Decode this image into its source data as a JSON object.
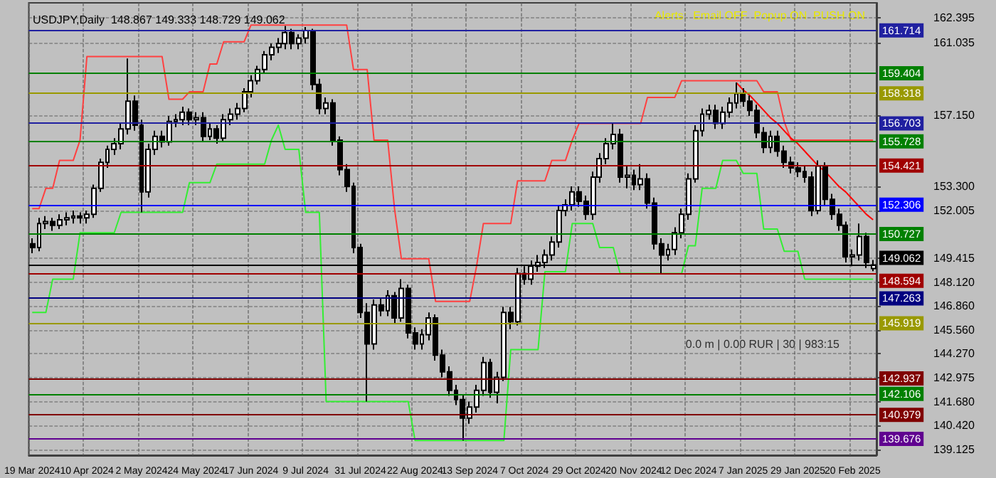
{
  "chart_data": {
    "type": "candlestick",
    "title": "USDJPY,Daily  148.867 149.333 148.729 149.062",
    "color": "#000000",
    "annotations": [
      "Alerts:  Email OFF  Popup ON  PUSH ON",
      "0.0 m | 0.00 RUR | 30 | 983:15"
    ],
    "categories": [
      "19 Mar 2024",
      null,
      null,
      null,
      null,
      null,
      null,
      null,
      "10 Apr 2024",
      null,
      null,
      null,
      null,
      null,
      null,
      null,
      "2 May 2024",
      null,
      null,
      null,
      null,
      null,
      null,
      null,
      "24 May 2024",
      null,
      null,
      null,
      null,
      null,
      null,
      null,
      "17 Jun 2024",
      null,
      null,
      null,
      null,
      null,
      null,
      null,
      "9 Jul 2024",
      null,
      null,
      null,
      null,
      null,
      null,
      null,
      "31 Jul 2024",
      null,
      null,
      null,
      null,
      null,
      null,
      null,
      "22 Aug 2024",
      null,
      null,
      null,
      null,
      null,
      null,
      null,
      "13 Sep 2024",
      null,
      null,
      null,
      null,
      null,
      null,
      null,
      "7 Oct 2024",
      null,
      null,
      null,
      null,
      null,
      null,
      null,
      "29 Oct 2024",
      null,
      null,
      null,
      null,
      null,
      null,
      null,
      "20 Nov 2024",
      null,
      null,
      null,
      null,
      null,
      null,
      null,
      "12 Dec 2024",
      null,
      null,
      null,
      null,
      null,
      null,
      null,
      "7 Jan 2025",
      null,
      null,
      null,
      null,
      null,
      null,
      null,
      "29 Jan 2025",
      null,
      null,
      null,
      null,
      null,
      null,
      null,
      "20 Feb 2025",
      null,
      null,
      null
    ],
    "ohlc": [
      [
        150.2,
        150.5,
        149.7,
        150.0
      ],
      [
        150.0,
        151.6,
        149.8,
        151.3
      ],
      [
        151.3,
        151.7,
        151.0,
        151.4
      ],
      [
        151.4,
        151.6,
        150.9,
        151.2
      ],
      [
        151.2,
        151.8,
        151.0,
        151.5
      ],
      [
        151.5,
        151.9,
        151.2,
        151.6
      ],
      [
        151.6,
        152.0,
        151.3,
        151.7
      ],
      [
        151.7,
        151.9,
        151.3,
        151.6
      ],
      [
        151.6,
        152.0,
        151.3,
        151.8
      ],
      [
        151.8,
        153.4,
        151.6,
        153.2
      ],
      [
        153.2,
        154.8,
        153.0,
        154.6
      ],
      [
        154.6,
        155.5,
        154.3,
        155.3
      ],
      [
        155.3,
        155.9,
        155.0,
        155.6
      ],
      [
        155.6,
        156.7,
        155.3,
        156.4
      ],
      [
        156.4,
        160.2,
        156.1,
        157.9
      ],
      [
        157.9,
        158.2,
        156.3,
        156.6
      ],
      [
        156.6,
        156.9,
        151.9,
        153.0
      ],
      [
        153.0,
        155.6,
        152.7,
        155.3
      ],
      [
        155.3,
        156.3,
        155.0,
        156.0
      ],
      [
        156.0,
        156.3,
        155.4,
        155.7
      ],
      [
        155.7,
        157.1,
        155.5,
        156.8
      ],
      [
        156.8,
        157.2,
        156.5,
        156.9
      ],
      [
        156.9,
        157.6,
        156.6,
        157.3
      ],
      [
        157.3,
        157.5,
        156.6,
        156.9
      ],
      [
        156.9,
        157.3,
        156.6,
        157.0
      ],
      [
        157.0,
        157.3,
        155.7,
        156.0
      ],
      [
        156.0,
        156.7,
        155.8,
        156.4
      ],
      [
        156.4,
        156.6,
        155.6,
        155.9
      ],
      [
        155.9,
        157.2,
        155.7,
        156.9
      ],
      [
        156.9,
        157.5,
        156.6,
        157.2
      ],
      [
        157.2,
        157.8,
        156.9,
        157.5
      ],
      [
        157.5,
        158.6,
        157.3,
        158.4
      ],
      [
        158.4,
        159.3,
        158.1,
        159.0
      ],
      [
        159.0,
        159.8,
        158.8,
        159.6
      ],
      [
        159.6,
        160.6,
        159.4,
        160.4
      ],
      [
        160.4,
        161.0,
        160.1,
        160.8
      ],
      [
        160.8,
        161.3,
        160.5,
        161.0
      ],
      [
        161.0,
        161.95,
        160.7,
        161.6
      ],
      [
        161.6,
        161.8,
        160.7,
        161.0
      ],
      [
        161.0,
        161.5,
        160.7,
        161.3
      ],
      [
        161.3,
        161.9,
        161.0,
        161.7
      ],
      [
        161.7,
        161.8,
        158.5,
        158.8
      ],
      [
        158.8,
        159.1,
        157.2,
        157.5
      ],
      [
        157.5,
        158.1,
        157.2,
        157.8
      ],
      [
        157.8,
        158.0,
        155.5,
        155.8
      ],
      [
        155.8,
        156.0,
        153.9,
        154.2
      ],
      [
        154.2,
        154.5,
        153.0,
        153.3
      ],
      [
        153.3,
        153.5,
        149.7,
        150.0
      ],
      [
        150.0,
        150.2,
        146.2,
        146.5
      ],
      [
        146.5,
        147.0,
        141.7,
        144.8
      ],
      [
        144.8,
        147.2,
        144.5,
        146.9
      ],
      [
        146.9,
        147.3,
        146.3,
        146.6
      ],
      [
        146.6,
        147.7,
        146.3,
        147.4
      ],
      [
        147.4,
        147.6,
        145.9,
        146.2
      ],
      [
        146.2,
        148.3,
        146.0,
        147.8
      ],
      [
        147.8,
        148.0,
        145.1,
        145.4
      ],
      [
        145.4,
        145.7,
        144.5,
        144.8
      ],
      [
        144.8,
        145.6,
        144.5,
        145.3
      ],
      [
        145.3,
        146.5,
        145.0,
        146.2
      ],
      [
        146.2,
        146.4,
        143.9,
        144.2
      ],
      [
        144.2,
        144.5,
        143.0,
        143.3
      ],
      [
        143.3,
        143.6,
        142.0,
        142.3
      ],
      [
        142.3,
        142.6,
        141.5,
        141.8
      ],
      [
        141.8,
        142.1,
        139.6,
        140.8
      ],
      [
        140.8,
        141.7,
        140.5,
        141.4
      ],
      [
        141.4,
        142.6,
        141.1,
        142.3
      ],
      [
        142.3,
        144.1,
        142.0,
        143.8
      ],
      [
        143.8,
        144.0,
        141.9,
        142.2
      ],
      [
        142.2,
        143.3,
        141.6,
        143.0
      ],
      [
        143.0,
        146.8,
        142.8,
        146.5
      ],
      [
        146.5,
        146.8,
        145.6,
        146.0
      ],
      [
        146.0,
        148.9,
        145.8,
        148.6
      ],
      [
        148.6,
        149.0,
        148.0,
        148.3
      ],
      [
        148.3,
        149.3,
        148.0,
        149.0
      ],
      [
        149.0,
        149.6,
        148.7,
        149.2
      ],
      [
        149.2,
        149.9,
        148.9,
        149.6
      ],
      [
        149.6,
        150.6,
        149.3,
        150.3
      ],
      [
        150.3,
        152.3,
        150.0,
        152.0
      ],
      [
        152.0,
        152.6,
        151.7,
        152.3
      ],
      [
        152.3,
        153.3,
        152.0,
        153.0
      ],
      [
        153.0,
        153.3,
        152.2,
        152.5
      ],
      [
        152.5,
        152.8,
        151.5,
        151.8
      ],
      [
        151.8,
        154.1,
        151.5,
        153.8
      ],
      [
        153.8,
        155.1,
        153.5,
        154.8
      ],
      [
        154.8,
        155.9,
        154.5,
        155.6
      ],
      [
        155.6,
        156.7,
        155.3,
        156.1
      ],
      [
        156.1,
        156.4,
        153.5,
        153.8
      ],
      [
        153.8,
        154.4,
        153.2,
        153.9
      ],
      [
        153.9,
        154.2,
        153.1,
        153.4
      ],
      [
        153.4,
        154.5,
        153.1,
        153.7
      ],
      [
        153.7,
        154.0,
        152.1,
        152.4
      ],
      [
        152.4,
        152.7,
        149.9,
        150.2
      ],
      [
        150.2,
        150.5,
        148.6,
        149.6
      ],
      [
        149.6,
        150.2,
        149.3,
        149.9
      ],
      [
        149.9,
        151.1,
        149.6,
        150.8
      ],
      [
        150.8,
        152.1,
        150.5,
        151.8
      ],
      [
        151.8,
        154.0,
        151.5,
        153.7
      ],
      [
        153.7,
        156.6,
        153.5,
        156.3
      ],
      [
        156.3,
        157.5,
        156.0,
        157.2
      ],
      [
        157.2,
        157.7,
        156.9,
        157.4
      ],
      [
        157.4,
        157.7,
        156.4,
        156.7
      ],
      [
        156.7,
        157.6,
        156.4,
        157.3
      ],
      [
        157.3,
        158.1,
        157.0,
        157.8
      ],
      [
        157.8,
        158.9,
        157.5,
        158.3
      ],
      [
        158.3,
        158.6,
        157.6,
        157.9
      ],
      [
        157.9,
        158.2,
        157.1,
        157.4
      ],
      [
        157.4,
        157.7,
        155.9,
        156.2
      ],
      [
        156.2,
        156.5,
        155.1,
        155.4
      ],
      [
        155.4,
        156.3,
        155.1,
        156.0
      ],
      [
        156.0,
        156.3,
        154.9,
        155.2
      ],
      [
        155.2,
        155.5,
        154.3,
        154.6
      ],
      [
        154.6,
        154.9,
        154.0,
        154.3
      ],
      [
        154.3,
        154.6,
        153.8,
        154.1
      ],
      [
        154.1,
        154.4,
        153.5,
        153.8
      ],
      [
        153.8,
        154.1,
        151.7,
        152.0
      ],
      [
        152.0,
        154.7,
        151.8,
        154.4
      ],
      [
        154.4,
        154.6,
        152.3,
        152.6
      ],
      [
        152.6,
        152.9,
        151.5,
        151.8
      ],
      [
        151.8,
        152.1,
        150.9,
        151.2
      ],
      [
        151.2,
        151.4,
        149.2,
        149.5
      ],
      [
        149.5,
        149.9,
        149.0,
        149.6
      ],
      [
        149.6,
        151.3,
        149.3,
        150.6
      ],
      [
        150.6,
        150.8,
        148.9,
        149.2
      ],
      [
        148.867,
        149.333,
        148.729,
        149.062
      ]
    ],
    "series": [
      {
        "type": "line",
        "color": "#ff4040",
        "values": [
          152.1,
          152.1,
          153.2,
          153.2,
          154.7,
          154.7,
          154.7,
          155.8,
          160.3,
          160.3,
          160.3,
          160.3,
          160.3,
          160.3,
          160.3,
          160.3,
          160.3,
          160.3,
          160.3,
          160.3,
          158.0,
          158.0,
          158.0,
          158.4,
          158.4,
          158.4,
          159.9,
          159.9,
          161.1,
          161.1,
          161.1,
          161.1,
          162.0,
          162.0,
          162.0,
          162.0,
          162.0,
          162.0,
          162.0,
          162.0,
          162.0,
          162.0,
          162.0,
          162.0,
          162.0,
          162.0,
          162.0,
          159.6,
          159.6,
          159.6,
          155.8,
          155.8,
          155.8,
          152.1,
          149.4,
          149.4,
          149.4,
          149.4,
          149.4,
          147.1,
          147.1,
          147.1,
          147.1,
          147.1,
          147.1,
          149.0,
          151.3,
          151.3,
          151.3,
          151.3,
          151.3,
          153.6,
          153.6,
          153.6,
          153.6,
          153.6,
          154.7,
          154.7,
          154.7,
          155.8,
          156.7,
          156.7,
          156.7,
          156.7,
          156.7,
          156.7,
          156.7,
          156.7,
          156.7,
          156.7,
          158.1,
          158.1,
          158.1,
          158.1,
          158.1,
          159.0,
          159.0,
          159.0,
          159.0,
          159.0,
          159.0,
          159.0,
          159.0,
          159.0,
          159.0,
          159.0,
          159.0,
          158.4,
          158.4,
          158.4,
          156.8,
          155.8,
          155.8,
          155.8,
          155.8,
          155.8,
          155.8,
          155.8,
          155.8,
          155.8,
          155.8,
          155.8,
          155.8,
          155.8
        ]
      },
      {
        "type": "line",
        "color": "#33ee33",
        "values": [
          146.5,
          146.5,
          146.5,
          148.3,
          148.3,
          148.3,
          148.3,
          150.8,
          150.8,
          150.8,
          150.8,
          150.8,
          150.8,
          151.9,
          151.9,
          151.9,
          151.9,
          151.9,
          151.9,
          151.9,
          151.9,
          151.9,
          151.9,
          153.5,
          153.5,
          153.5,
          153.5,
          154.5,
          154.5,
          154.5,
          154.5,
          154.5,
          154.5,
          154.5,
          154.5,
          155.8,
          156.6,
          155.3,
          155.3,
          155.3,
          151.9,
          151.9,
          151.9,
          141.7,
          141.7,
          141.7,
          141.7,
          141.7,
          141.7,
          141.7,
          141.7,
          141.7,
          141.7,
          141.7,
          141.7,
          141.7,
          139.6,
          139.6,
          139.6,
          139.6,
          139.6,
          139.6,
          139.6,
          139.6,
          139.6,
          139.6,
          139.6,
          139.6,
          139.6,
          139.6,
          144.5,
          144.5,
          144.5,
          144.5,
          144.5,
          148.7,
          148.7,
          148.7,
          148.7,
          151.3,
          151.3,
          151.3,
          151.3,
          150.0,
          150.0,
          150.0,
          148.6,
          148.6,
          148.6,
          148.6,
          148.6,
          148.6,
          148.6,
          148.6,
          148.6,
          148.6,
          150.1,
          150.1,
          153.2,
          153.2,
          153.2,
          154.7,
          154.7,
          154.7,
          154.0,
          154.0,
          154.0,
          151.0,
          151.0,
          151.0,
          149.8,
          149.8,
          149.8,
          148.3,
          148.3,
          148.3,
          148.3,
          148.3,
          148.3,
          148.3,
          148.3,
          148.3,
          148.3,
          148.3
        ]
      },
      {
        "type": "line",
        "color": "#ff0000",
        "values": [
          null,
          null,
          null,
          null,
          null,
          null,
          null,
          null,
          null,
          null,
          null,
          null,
          null,
          null,
          null,
          null,
          null,
          null,
          null,
          null,
          null,
          null,
          null,
          null,
          null,
          null,
          null,
          null,
          null,
          null,
          null,
          null,
          null,
          null,
          null,
          null,
          null,
          null,
          null,
          null,
          null,
          null,
          null,
          null,
          null,
          null,
          null,
          null,
          null,
          null,
          null,
          null,
          null,
          null,
          null,
          null,
          null,
          null,
          null,
          null,
          null,
          null,
          null,
          null,
          null,
          null,
          null,
          null,
          null,
          null,
          null,
          null,
          null,
          null,
          null,
          null,
          null,
          null,
          null,
          null,
          null,
          null,
          null,
          null,
          null,
          null,
          null,
          null,
          null,
          null,
          null,
          null,
          null,
          null,
          null,
          null,
          null,
          null,
          null,
          null,
          null,
          null,
          null,
          158.9,
          158.5,
          158.2,
          157.8,
          157.4,
          157.0,
          156.7,
          156.3,
          155.9,
          155.6,
          155.2,
          154.8,
          154.4,
          154.1,
          153.7,
          153.3,
          153.0,
          152.6,
          152.2,
          151.8,
          151.5
        ]
      }
    ],
    "ylim": [
      138.8,
      163.2
    ],
    "yticks": [
      162.395,
      161.035,
      {
        "value": 157.15,
        "label": "157.150"
      },
      {
        "value": 153.3,
        "label": "153.300"
      },
      152.005,
      149.415,
      {
        "value": 148.12,
        "label": "148.120"
      },
      {
        "value": 146.86,
        "label": "146.860"
      },
      {
        "value": 145.56,
        "label": "145.560"
      },
      {
        "value": 144.27,
        "label": "144.270"
      },
      142.975,
      {
        "value": 141.68,
        "label": "141.680"
      },
      {
        "value": 140.42,
        "label": "140.420"
      },
      139.125
    ],
    "ref_lines": [
      {
        "axis": "y",
        "value": 161.714,
        "label": "161.714",
        "color": "#2020a0"
      },
      {
        "axis": "y",
        "value": 159.404,
        "label": "159.404",
        "color": "#008000"
      },
      {
        "axis": "y",
        "value": 158.318,
        "label": "158.318",
        "color": "#999900"
      },
      {
        "axis": "y",
        "value": 156.703,
        "label": "156.703",
        "color": "#2020a0"
      },
      {
        "axis": "y",
        "value": 155.728,
        "label": "155.728",
        "color": "#008000"
      },
      {
        "axis": "y",
        "value": 154.421,
        "label": "154.421",
        "color": "#a00000"
      },
      {
        "axis": "y",
        "value": 152.306,
        "label": "152.306",
        "color": "#0000ff"
      },
      {
        "axis": "y",
        "value": 150.727,
        "label": "150.727",
        "color": "#008000"
      },
      {
        "axis": "y",
        "value": 149.062,
        "label": "149.062",
        "color": "#000000"
      },
      {
        "axis": "y",
        "value": 148.594,
        "label": "148.594",
        "color": "#a00000"
      },
      {
        "axis": "y",
        "value": 147.263,
        "label": "147.263",
        "color": "#000080"
      },
      {
        "axis": "y",
        "value": 145.919,
        "label": "145.919",
        "color": "#999900"
      },
      {
        "axis": "y",
        "value": 142.937,
        "label": "142.937",
        "color": "#800000"
      },
      {
        "axis": "y",
        "value": 142.106,
        "label": "142.106",
        "color": "#008000"
      },
      {
        "axis": "y",
        "value": 140.979,
        "label": "140.979",
        "color": "#800000"
      },
      {
        "axis": "y",
        "value": 139.676,
        "label": "139.676",
        "color": "#600090"
      }
    ],
    "grid": true,
    "marker": "none",
    "line_style": "solid"
  }
}
